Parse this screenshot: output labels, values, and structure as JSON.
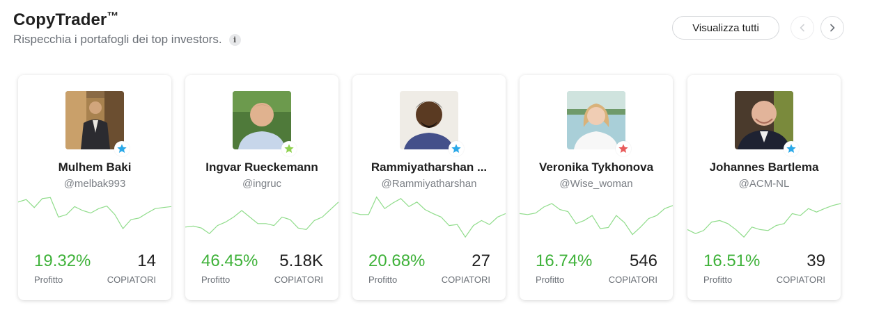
{
  "header": {
    "title": "CopyTrader",
    "title_mark": "™",
    "subtitle": "Rispecchia i portafogli dei top investors.",
    "info_glyph": "i",
    "view_all_label": "Visualizza tutti",
    "prev_icon": "chevron-left-icon",
    "next_icon": "chevron-right-icon"
  },
  "colors": {
    "profit_green": "#3fb23a",
    "sparkline": "#8fdc8a",
    "badge_blue": "#2aa8e8",
    "badge_green": "#8fd14f",
    "badge_red": "#e85b5b"
  },
  "traders": [
    {
      "name": "Mulhem Baki",
      "handle": "@melbak993",
      "profit": "19.32%",
      "profit_label": "Profitto",
      "copiers": "14",
      "copiers_label": "COPIATORI",
      "badge": "blue-star-icon",
      "badge_color": "#2aa8e8",
      "spark": [
        0.85,
        0.9,
        0.74,
        0.92,
        0.94,
        0.55,
        0.6,
        0.76,
        0.68,
        0.63,
        0.72,
        0.77,
        0.6,
        0.32,
        0.5,
        0.53,
        0.63,
        0.72,
        0.74,
        0.76
      ]
    },
    {
      "name": "Ingvar Rueckemann",
      "handle": "@ingruc",
      "profit": "46.45%",
      "profit_label": "Profitto",
      "copiers": "5.18K",
      "copiers_label": "COPIATORI",
      "badge": "green-star-icon",
      "badge_color": "#8fd14f",
      "spark": [
        0.35,
        0.37,
        0.33,
        0.22,
        0.38,
        0.45,
        0.55,
        0.68,
        0.55,
        0.42,
        0.42,
        0.38,
        0.55,
        0.5,
        0.33,
        0.3,
        0.48,
        0.55,
        0.7,
        0.85
      ]
    },
    {
      "name": "Rammiyatharshan ...",
      "handle": "@Rammiyatharshan",
      "profit": "20.68%",
      "profit_label": "Profitto",
      "copiers": "27",
      "copiers_label": "COPIATORI",
      "badge": "blue-star-icon",
      "badge_color": "#2aa8e8",
      "spark": [
        0.64,
        0.6,
        0.6,
        0.95,
        0.72,
        0.83,
        0.92,
        0.76,
        0.85,
        0.7,
        0.62,
        0.55,
        0.38,
        0.4,
        0.15,
        0.38,
        0.48,
        0.4,
        0.55,
        0.62
      ]
    },
    {
      "name": "Veronika Tykhonova",
      "handle": "@Wise_woman",
      "profit": "16.74%",
      "profit_label": "Profitto",
      "copiers": "546",
      "copiers_label": "COPIATORI",
      "badge": "red-star-icon",
      "badge_color": "#e85b5b",
      "spark": [
        0.62,
        0.6,
        0.63,
        0.75,
        0.82,
        0.7,
        0.66,
        0.42,
        0.48,
        0.58,
        0.32,
        0.34,
        0.58,
        0.44,
        0.2,
        0.35,
        0.52,
        0.58,
        0.72,
        0.78
      ]
    },
    {
      "name": "Johannes Bartlema",
      "handle": "@ACM-NL",
      "profit": "16.51%",
      "profit_label": "Profitto",
      "copiers": "39",
      "copiers_label": "COPIATORI",
      "badge": "blue-star-icon",
      "badge_color": "#2aa8e8",
      "spark": [
        0.3,
        0.22,
        0.28,
        0.45,
        0.48,
        0.42,
        0.3,
        0.15,
        0.35,
        0.3,
        0.28,
        0.38,
        0.42,
        0.62,
        0.58,
        0.72,
        0.65,
        0.72,
        0.78,
        0.82
      ]
    }
  ]
}
